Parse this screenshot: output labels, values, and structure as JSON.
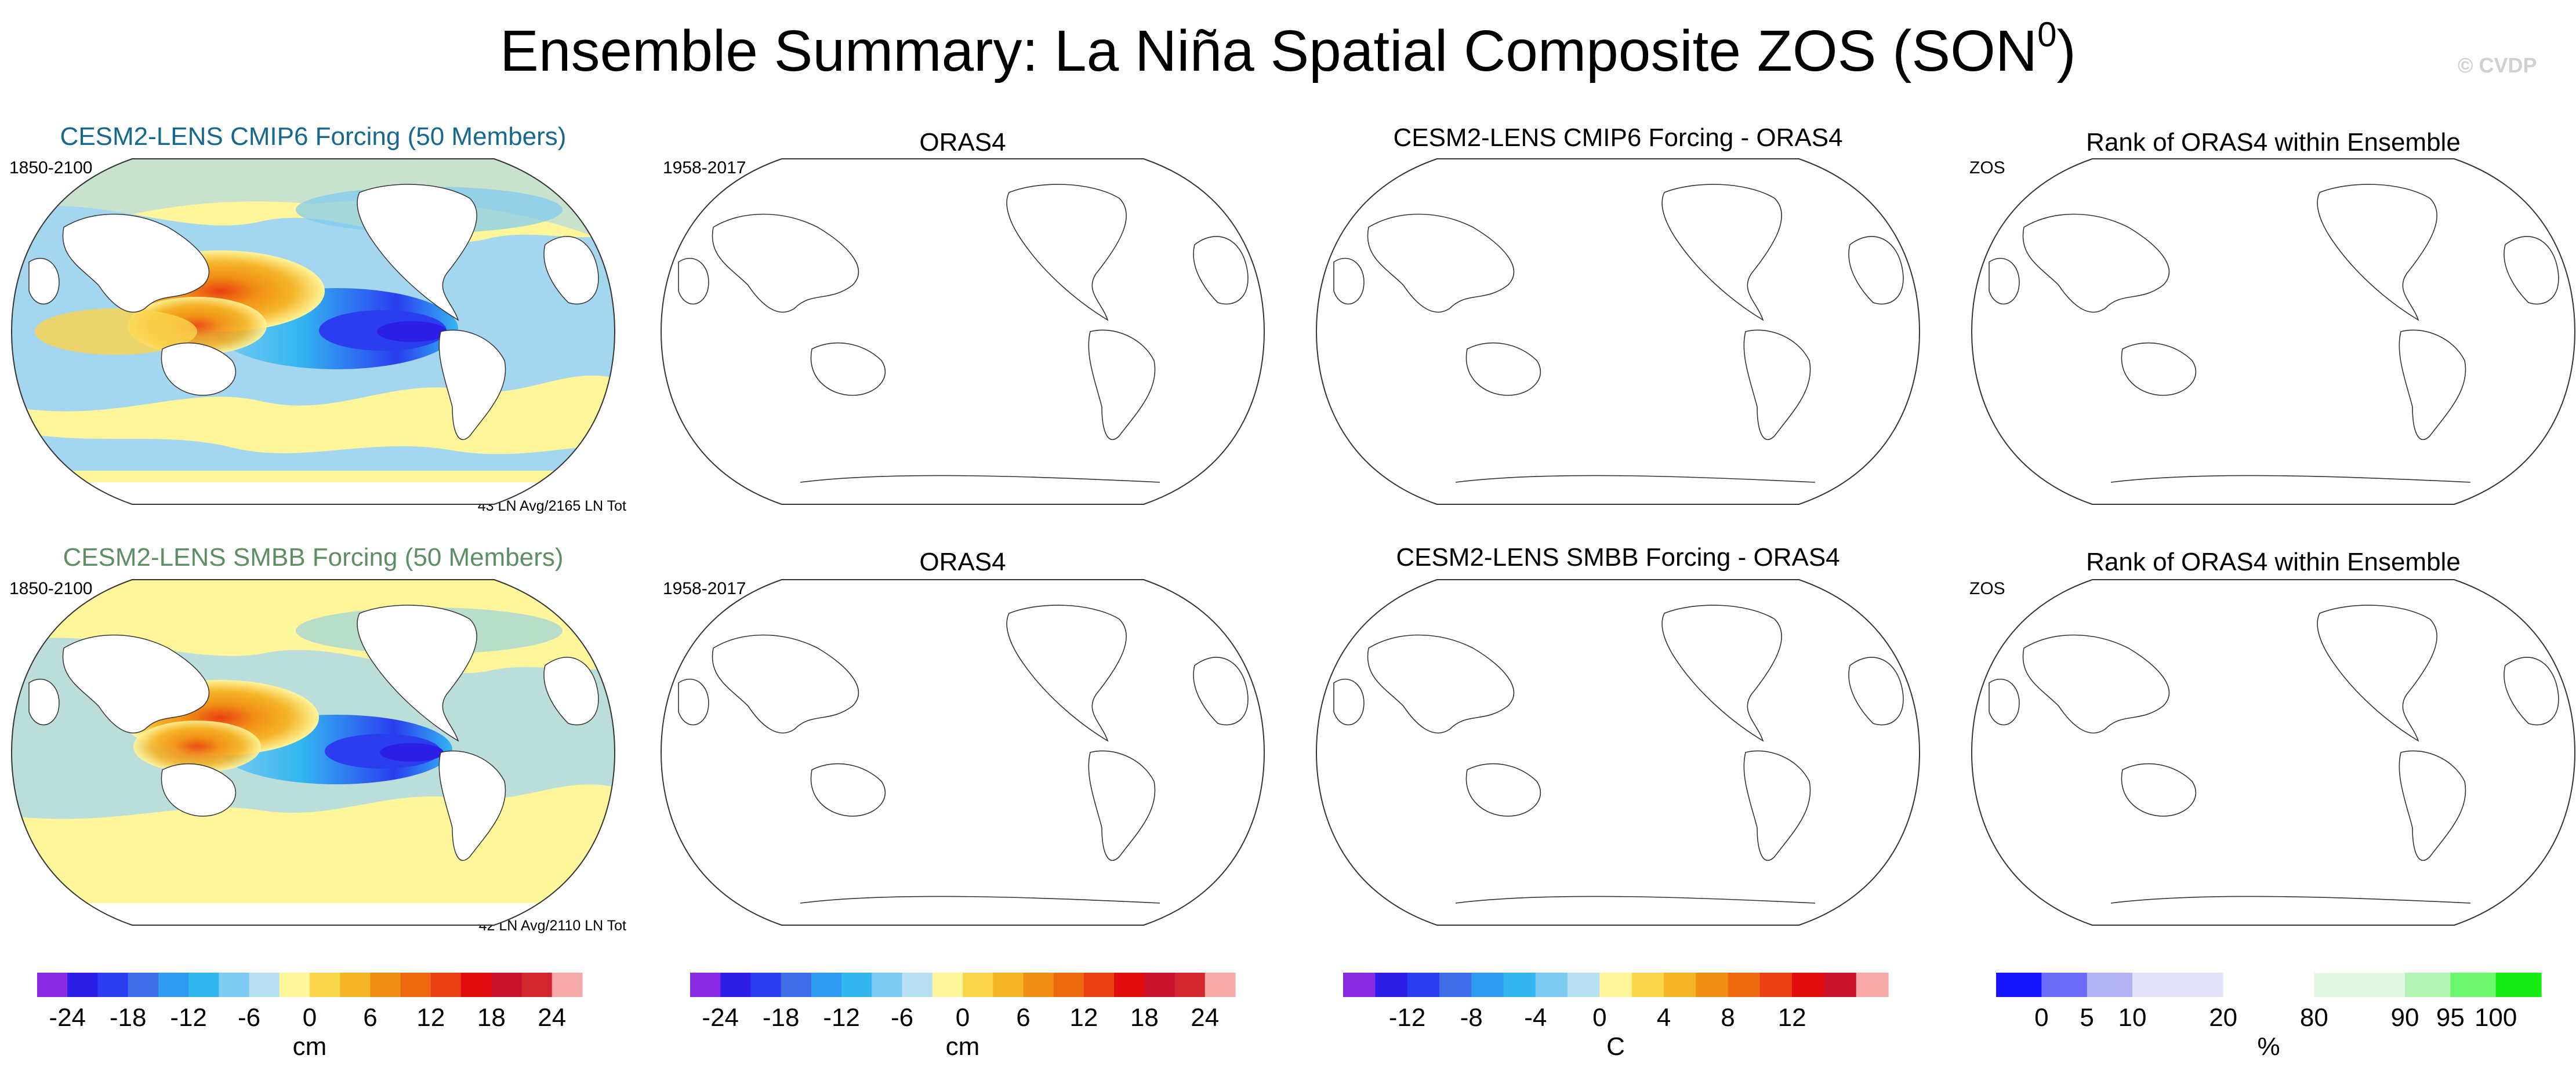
{
  "title": "Ensemble Summary: La Niña Spatial Composite ZOS (SON",
  "title_sup": "0",
  "title_close": ")",
  "watermark": "© CVDP",
  "colors": {
    "ocean_blue": "#a5d6ef",
    "ocean_yellow": "#fff59b",
    "cyan_title": "#17688e",
    "green_title": "#5f8d66"
  },
  "panels": [
    {
      "title": "CESM2-LENS CMIP6 Forcing (50 Members)",
      "left_label": "1850-2100",
      "note": "43 LN Avg/2165 LN Tot"
    },
    {
      "title": "ORAS4",
      "left_label": "1958-2017"
    },
    {
      "title": "CESM2-LENS CMIP6 Forcing - ORAS4"
    },
    {
      "title": "Rank of ORAS4 within Ensemble",
      "left_label": "ZOS"
    },
    {
      "title": "CESM2-LENS SMBB Forcing (50 Members)",
      "left_label": "1850-2100",
      "note": "42 LN Avg/2110 LN Tot"
    },
    {
      "title": "ORAS4",
      "left_label": "1958-2017"
    },
    {
      "title": "CESM2-LENS SMBB Forcing - ORAS4"
    },
    {
      "title": "Rank of ORAS4 within Ensemble",
      "left_label": "ZOS"
    }
  ],
  "chart_data": [
    {
      "type": "heatmap",
      "title": "CESM2-LENS CMIP6 Forcing (50 Members)",
      "left_label": "1850-2100",
      "annotation": "43 LN Avg/2165 LN Tot",
      "units": "cm",
      "pattern": "negative ZOS anomalies (blue) across central/eastern equatorial Pacific, strongest near -18 to -24 cm; positive anomalies (orange/red, 6 to 18 cm) in western tropical Pacific and Maritime Continent"
    },
    {
      "type": "heatmap",
      "title": "ORAS4",
      "left_label": "1958-2017",
      "units": "cm",
      "pattern": "blank map (no data plotted)"
    },
    {
      "type": "heatmap",
      "title": "CESM2-LENS CMIP6 Forcing - ORAS4",
      "units": "C",
      "pattern": "blank map (no data plotted)"
    },
    {
      "type": "heatmap",
      "title": "Rank of ORAS4 within Ensemble",
      "left_label": "ZOS",
      "units": "%",
      "pattern": "blank map (no data plotted)"
    },
    {
      "type": "heatmap",
      "title": "CESM2-LENS SMBB Forcing (50 Members)",
      "left_label": "1850-2100",
      "annotation": "42 LN Avg/2110 LN Tot",
      "units": "cm",
      "pattern": "negative ZOS anomalies (blue) along equatorial Pacific; positive anomalies (orange/red) in western tropical Pacific warm pool"
    },
    {
      "type": "heatmap",
      "title": "ORAS4",
      "left_label": "1958-2017",
      "units": "cm",
      "pattern": "blank map (no data plotted)"
    },
    {
      "type": "heatmap",
      "title": "CESM2-LENS SMBB Forcing - ORAS4",
      "units": "C",
      "pattern": "blank map (no data plotted)"
    },
    {
      "type": "heatmap",
      "title": "Rank of ORAS4 within Ensemble",
      "left_label": "ZOS",
      "units": "%",
      "pattern": "blank map (no data plotted)"
    }
  ],
  "colorbars": [
    {
      "unit": "cm",
      "colors": [
        "#8a2be2",
        "#2c1ee6",
        "#2a3ef0",
        "#3f6ee9",
        "#2e9bf0",
        "#33b6f0",
        "#7ecbf2",
        "#b8e0f2",
        "#fff59b",
        "#fbd54c",
        "#f4b529",
        "#f18f14",
        "#ee6810",
        "#e93f11",
        "#e00c0e",
        "#c8112b",
        "#d2262e",
        "#f7a8a8"
      ],
      "ticks": [
        "-24",
        "-18",
        "-12",
        "-6",
        "0",
        "6",
        "12",
        "18",
        "24"
      ],
      "tick_boundaries": [
        1,
        3,
        5,
        7,
        9,
        11,
        13,
        15,
        17
      ]
    },
    {
      "unit": "cm",
      "colors": [
        "#8a2be2",
        "#2c1ee6",
        "#2a3ef0",
        "#3f6ee9",
        "#2e9bf0",
        "#33b6f0",
        "#7ecbf2",
        "#b8e0f2",
        "#fff59b",
        "#fbd54c",
        "#f4b529",
        "#f18f14",
        "#ee6810",
        "#e93f11",
        "#e00c0e",
        "#c8112b",
        "#d2262e",
        "#f7a8a8"
      ],
      "ticks": [
        "-24",
        "-18",
        "-12",
        "-6",
        "0",
        "6",
        "12",
        "18",
        "24"
      ],
      "tick_boundaries": [
        1,
        3,
        5,
        7,
        9,
        11,
        13,
        15,
        17
      ]
    },
    {
      "unit": "C",
      "colors": [
        "#8a2be2",
        "#2c1ee6",
        "#2a3ef0",
        "#3f6ee9",
        "#2e9bf0",
        "#33b6f0",
        "#7ecbf2",
        "#b8e0f2",
        "#fff59b",
        "#fbd54c",
        "#f4b529",
        "#f18f14",
        "#ee6810",
        "#e93f11",
        "#e00c0e",
        "#c8112b",
        "#f7a8a8"
      ],
      "ticks": [
        "-12",
        "-8",
        "-4",
        "0",
        "4",
        "8",
        "12"
      ],
      "tick_boundaries": [
        2,
        4,
        6,
        8,
        10,
        12,
        14
      ]
    },
    {
      "unit": "%",
      "colors": [
        "#1414ff",
        "#6c6cf6",
        "#b4b4f4",
        "#e2e2f8",
        "#e2e2f8",
        "#ffffff",
        "#ffffff",
        "#e2f8e2",
        "#e2f8e2",
        "#b4f4b4",
        "#6cf66c",
        "#14ec14"
      ],
      "ticks": [
        "0",
        "5",
        "10",
        "20",
        "80",
        "90",
        "95",
        "100"
      ],
      "tick_boundaries": [
        1,
        2,
        3,
        5,
        7,
        9,
        10,
        11
      ]
    }
  ]
}
